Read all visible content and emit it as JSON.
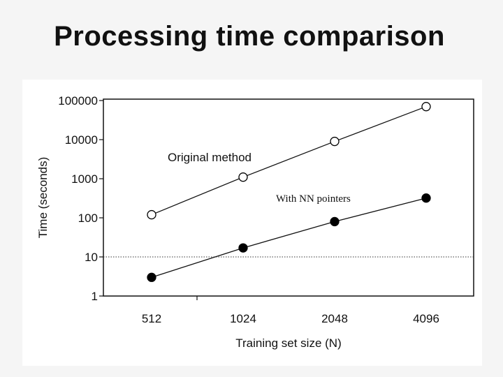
{
  "slide": {
    "title": "Processing time comparison"
  },
  "chart_data": {
    "type": "line",
    "title": "Processing time comparison",
    "xlabel": "Training set size (N)",
    "ylabel": "Time (seconds)",
    "yscale": "log",
    "ylim": [
      1,
      100000
    ],
    "categories": [
      "512",
      "1024",
      "2048",
      "4096"
    ],
    "y_ticks": [
      "1",
      "10",
      "100",
      "1000",
      "10000",
      "100000"
    ],
    "y_tick_values": [
      1,
      10,
      100,
      1000,
      10000,
      100000
    ],
    "reference_line": {
      "value": 10,
      "style": "dotted"
    },
    "series": [
      {
        "name": "Original method",
        "marker": "open-circle",
        "values": [
          120,
          1100,
          9000,
          70000
        ]
      },
      {
        "name": "With NN pointers",
        "marker": "filled-circle",
        "values": [
          3,
          17,
          80,
          320
        ]
      }
    ]
  }
}
